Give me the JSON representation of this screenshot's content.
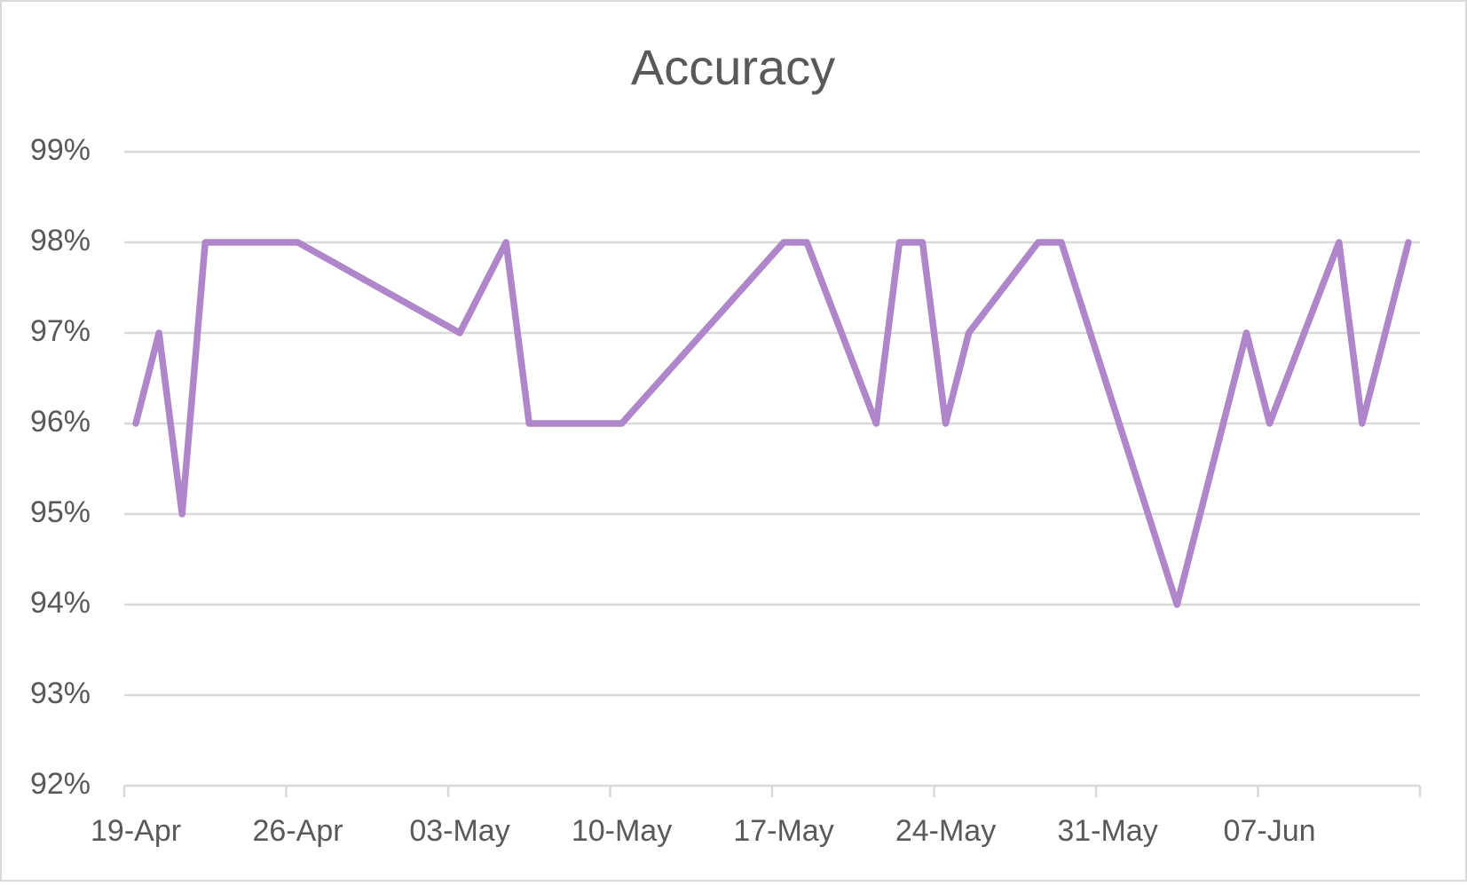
{
  "chart_data": {
    "type": "line",
    "title": "Accuracy",
    "x": [
      "19-Apr",
      "20-Apr",
      "21-Apr",
      "22-Apr",
      "26-Apr",
      "03-May",
      "05-May",
      "06-May",
      "10-May",
      "17-May",
      "18-May",
      "21-May",
      "22-May",
      "23-May",
      "24-May",
      "25-May",
      "28-May",
      "29-May",
      "03-Jun",
      "06-Jun",
      "07-Jun",
      "10-Jun",
      "11-Jun",
      "13-Jun"
    ],
    "series": [
      {
        "name": "Accuracy",
        "color": "#ae86c9",
        "values": [
          96,
          97,
          95,
          98,
          98,
          97,
          98,
          96,
          96,
          98,
          98,
          96,
          98,
          98,
          96,
          97,
          98,
          98,
          94,
          97,
          96,
          98,
          96,
          98
        ]
      }
    ],
    "xlim": [
      "19-Apr",
      "14-Jun"
    ],
    "xticks": [
      "19-Apr",
      "26-Apr",
      "03-May",
      "10-May",
      "17-May",
      "24-May",
      "31-May",
      "07-Jun"
    ],
    "ylim": [
      92,
      99
    ],
    "yticks": [
      {
        "value": 92,
        "label": "92%"
      },
      {
        "value": 93,
        "label": "93%"
      },
      {
        "value": 94,
        "label": "94%"
      },
      {
        "value": 95,
        "label": "95%"
      },
      {
        "value": 96,
        "label": "96%"
      },
      {
        "value": 97,
        "label": "97%"
      },
      {
        "value": 98,
        "label": "98%"
      },
      {
        "value": 99,
        "label": "99%"
      }
    ],
    "grid": true
  }
}
